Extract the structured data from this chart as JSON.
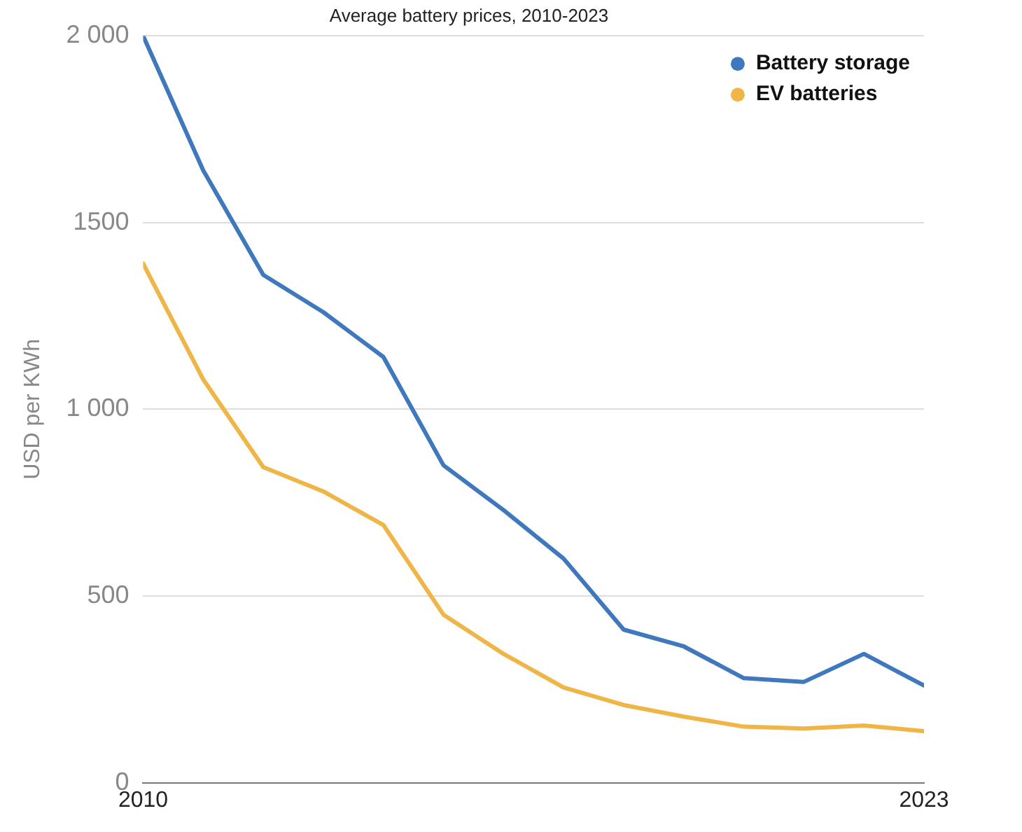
{
  "chart_data": {
    "type": "line",
    "title": "Average battery prices, 2010-2023",
    "ylabel": "USD per KWh",
    "x": [
      2010,
      2011,
      2012,
      2013,
      2014,
      2015,
      2016,
      2017,
      2018,
      2019,
      2020,
      2021,
      2022,
      2023
    ],
    "series": [
      {
        "name": "Battery storage",
        "color": "#3f78bd",
        "values": [
          2000,
          1640,
          1360,
          1260,
          1140,
          850,
          730,
          600,
          410,
          365,
          280,
          270,
          345,
          260
        ]
      },
      {
        "name": "EV batteries",
        "color": "#efb547",
        "values": [
          1390,
          1080,
          845,
          780,
          690,
          450,
          345,
          255,
          208,
          177,
          150,
          145,
          153,
          138
        ]
      }
    ],
    "xlim": [
      2010,
      2023
    ],
    "xticks": [
      2010,
      2023
    ],
    "ylim": [
      0,
      2000
    ],
    "yticks": [
      0,
      500,
      {
        "value": 1000,
        "label": "1 000"
      },
      1500,
      {
        "value": 2000,
        "label": "2 000"
      }
    ],
    "grid": "y",
    "legend": "top right",
    "marker": "none",
    "line_style": "solid"
  }
}
